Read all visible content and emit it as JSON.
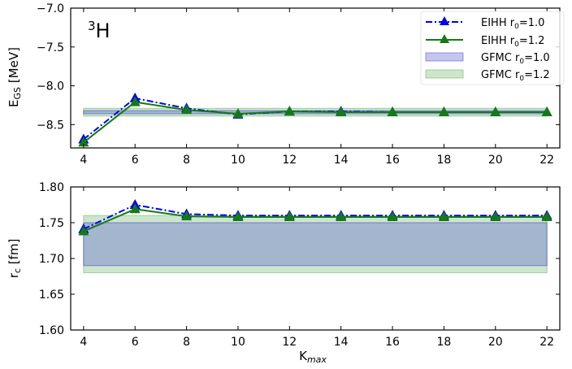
{
  "figure": {
    "nucleus_superscript": "3",
    "nucleus_symbol": "H"
  },
  "legend": {
    "entries": [
      {
        "label_main": "EIHH r",
        "label_sub": "0",
        "label_tail": "=1.0"
      },
      {
        "label_main": "EIHH r",
        "label_sub": "0",
        "label_tail": "=1.2"
      },
      {
        "label_main": "GFMC r",
        "label_sub": "0",
        "label_tail": "=1.0"
      },
      {
        "label_main": "GFMC r",
        "label_sub": "0",
        "label_tail": "=1.2"
      }
    ]
  },
  "colors": {
    "eihh_10": "#0000ee",
    "eihh_12": "#157a15",
    "gfmc_10_fill": "#5a5ad2",
    "gfmc_12_fill": "#7fc07f"
  },
  "chart_data": [
    {
      "type": "line",
      "ylabel_main": "E",
      "ylabel_sub": "GS",
      "ylabel_tail": " [MeV]",
      "xlabel": "",
      "xlim": [
        3.5,
        22.5
      ],
      "ylim": [
        -8.8,
        -7.0
      ],
      "yticks": [
        "-7.0",
        "-7.5",
        "-8.0",
        "-8.5"
      ],
      "ytick_values": [
        -7.0,
        -7.5,
        -8.0,
        -8.5
      ],
      "xticks": [
        "4",
        "6",
        "8",
        "10",
        "12",
        "14",
        "16",
        "18",
        "20",
        "22"
      ],
      "x": [
        4,
        6,
        8,
        10,
        12,
        14,
        16,
        18,
        20,
        22
      ],
      "series": [
        {
          "name": "EIHH r0=1.0",
          "values": [
            -8.69,
            -8.16,
            -8.29,
            -8.37,
            -8.33,
            -8.33,
            -8.34,
            -8.34,
            -8.34,
            -8.34
          ]
        },
        {
          "name": "EIHH r0=1.2",
          "values": [
            -8.73,
            -8.21,
            -8.31,
            -8.36,
            -8.33,
            -8.34,
            -8.34,
            -8.34,
            -8.34,
            -8.34
          ]
        }
      ],
      "bands": [
        {
          "name": "GFMC r0=1.0",
          "low": -8.36,
          "high": -8.32,
          "xrange": [
            4,
            22
          ]
        },
        {
          "name": "GFMC r0=1.2",
          "low": -8.39,
          "high": -8.29,
          "xrange": [
            4,
            22
          ]
        }
      ]
    },
    {
      "type": "line",
      "ylabel_main": "r",
      "ylabel_sub": "c",
      "ylabel_tail": " [fm]",
      "xlabel_main": "K",
      "xlabel_sub": "max",
      "xlim": [
        3.5,
        22.5
      ],
      "ylim": [
        1.6,
        1.8
      ],
      "yticks": [
        "1.80",
        "1.75",
        "1.70",
        "1.65",
        "1.60"
      ],
      "ytick_values": [
        1.8,
        1.75,
        1.7,
        1.65,
        1.6
      ],
      "xticks": [
        "4",
        "6",
        "8",
        "10",
        "12",
        "14",
        "16",
        "18",
        "20",
        "22"
      ],
      "x": [
        4,
        6,
        8,
        10,
        12,
        14,
        16,
        18,
        20,
        22
      ],
      "series": [
        {
          "name": "EIHH r0=1.0",
          "values": [
            1.741,
            1.775,
            1.762,
            1.76,
            1.76,
            1.76,
            1.76,
            1.76,
            1.76,
            1.76
          ]
        },
        {
          "name": "EIHH r0=1.2",
          "values": [
            1.738,
            1.769,
            1.759,
            1.758,
            1.758,
            1.758,
            1.758,
            1.758,
            1.758,
            1.758
          ]
        }
      ],
      "bands": [
        {
          "name": "GFMC r0=1.0",
          "low": 1.69,
          "high": 1.75,
          "xrange": [
            4,
            22
          ]
        },
        {
          "name": "GFMC r0=1.2",
          "low": 1.68,
          "high": 1.76,
          "xrange": [
            4,
            22
          ]
        }
      ]
    }
  ]
}
